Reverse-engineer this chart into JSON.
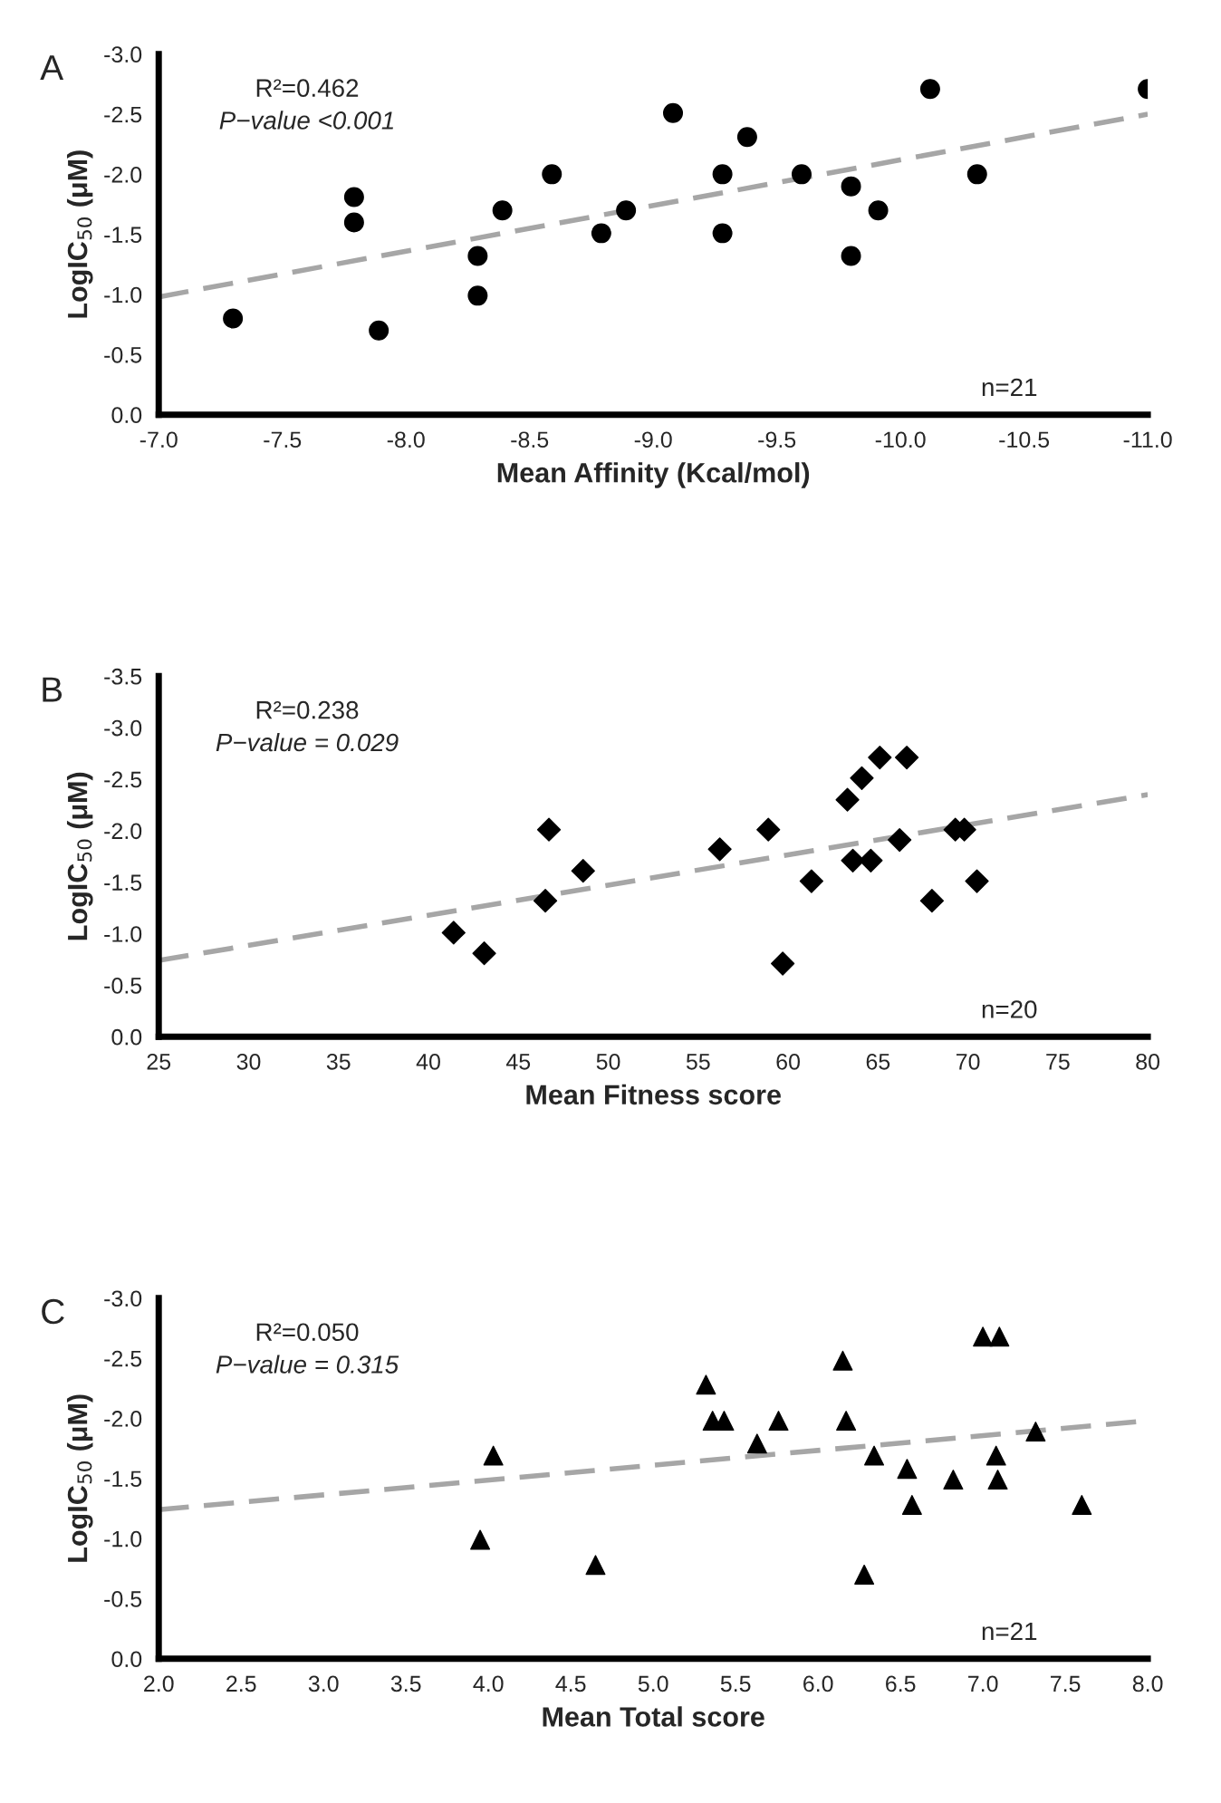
{
  "chart_data": [
    {
      "type": "scatter",
      "xlabel": "Mean Affinity (Kcal/mol)",
      "ylabel": "LogIC$_{50}$ (μM)",
      "marker": "circle",
      "grid": false,
      "legend": false,
      "annotations": [
        "A",
        "R²=0.462",
        "P−value <0.001",
        "n=21"
      ],
      "xlim": [
        -7.0,
        -11.0
      ],
      "xticks": [
        {
          "value": -7,
          "label": "-7.0"
        },
        -7.5,
        {
          "value": -8,
          "label": "-8.0"
        },
        -8.5,
        {
          "value": -9,
          "label": "-9.0"
        },
        -9.5,
        {
          "value": -10,
          "label": "-10.0"
        },
        -10.5,
        {
          "value": -11,
          "label": "-11.0"
        }
      ],
      "ylim": [
        0.0,
        -3.0
      ],
      "yticks": [
        {
          "value": 0,
          "label": "0.0"
        },
        -0.5,
        {
          "value": -1,
          "label": "-1.0"
        },
        -1.5,
        {
          "value": -2,
          "label": "-2.0"
        },
        -2.5,
        {
          "value": -3,
          "label": "-3.0"
        }
      ],
      "series": [
        {
          "color": "#000000",
          "x": [
            -7.3,
            -7.89,
            -7.79,
            -7.79,
            -8.29,
            -8.29,
            -8.39,
            -8.59,
            -8.79,
            -8.89,
            -9.08,
            -9.28,
            -9.28,
            -9.38,
            -9.6,
            -9.8,
            -9.8,
            -9.91,
            -10.12,
            -10.31,
            -11.0
          ],
          "values": [
            -0.8,
            -0.7,
            -1.81,
            -1.6,
            -1.32,
            -0.99,
            -1.7,
            -2.0,
            -1.51,
            -1.7,
            -2.51,
            -2.0,
            -1.51,
            -2.31,
            -2.0,
            -1.9,
            -1.32,
            -1.7,
            -2.71,
            -2.0,
            -2.71
          ]
        },
        {
          "type": "line",
          "color": "#a6a6a6",
          "line_style": "dashed",
          "marker": "none",
          "x": [
            -7.0,
            -11.0
          ],
          "values": [
            -0.98,
            -2.5
          ]
        }
      ]
    },
    {
      "type": "scatter",
      "xlabel": "Mean Fitness score",
      "ylabel": "LogIC$_{50}$ (μM)",
      "marker": "diamond",
      "grid": false,
      "legend": false,
      "annotations": [
        "B",
        "R²=0.238",
        "P−value = 0.029",
        "n=20"
      ],
      "xlim": [
        25,
        80
      ],
      "xticks": [
        25,
        30,
        35,
        40,
        45,
        50,
        55,
        60,
        65,
        70,
        75,
        80
      ],
      "ylim": [
        0.0,
        -3.5
      ],
      "yticks": [
        {
          "value": 0,
          "label": "0.0"
        },
        -0.5,
        {
          "value": -1,
          "label": "-1.0"
        },
        -1.5,
        {
          "value": -2,
          "label": "-2.0"
        },
        -2.5,
        {
          "value": -3,
          "label": "-3.0"
        },
        -3.5
      ],
      "series": [
        {
          "color": "#000000",
          "x": [
            41.4,
            43.1,
            46.7,
            46.5,
            48.6,
            56.2,
            58.9,
            59.7,
            61.3,
            63.3,
            64.1,
            63.6,
            64.6,
            65.1,
            66.6,
            66.2,
            69.3,
            69.8,
            68.0,
            70.5
          ],
          "values": [
            -1.01,
            -0.81,
            -2.01,
            -1.32,
            -1.61,
            -1.82,
            -2.01,
            -0.71,
            -1.51,
            -2.3,
            -2.51,
            -1.71,
            -1.71,
            -2.71,
            -2.71,
            -1.91,
            -2.01,
            -2.01,
            -1.32,
            -1.51
          ]
        },
        {
          "type": "line",
          "color": "#a6a6a6",
          "line_style": "dashed",
          "marker": "none",
          "x": [
            25,
            80
          ],
          "values": [
            -0.74,
            -2.35
          ]
        }
      ]
    },
    {
      "type": "scatter",
      "xlabel": "Mean Total score",
      "ylabel": "LogIC$_{50}$ (μM)",
      "marker": "triangle",
      "grid": false,
      "legend": false,
      "annotations": [
        "C",
        "R²=0.050",
        "P−value = 0.315",
        "n=21"
      ],
      "xlim": [
        2.0,
        8.0
      ],
      "xticks": [
        {
          "value": 2,
          "label": "2.0"
        },
        2.5,
        {
          "value": 3,
          "label": "3.0"
        },
        3.5,
        {
          "value": 4,
          "label": "4.0"
        },
        4.5,
        {
          "value": 5,
          "label": "5.0"
        },
        5.5,
        {
          "value": 6,
          "label": "6.0"
        },
        6.5,
        {
          "value": 7,
          "label": "7.0"
        },
        7.5,
        {
          "value": 8,
          "label": "8.0"
        }
      ],
      "ylim": [
        0.0,
        -3.0
      ],
      "yticks": [
        {
          "value": 0,
          "label": "0.0"
        },
        -0.5,
        {
          "value": -1,
          "label": "-1.0"
        },
        -1.5,
        {
          "value": -2,
          "label": "-2.0"
        },
        -2.5,
        {
          "value": -3,
          "label": "-3.0"
        }
      ],
      "series": [
        {
          "color": "#000000",
          "x": [
            3.95,
            4.03,
            4.65,
            5.32,
            5.36,
            5.43,
            5.63,
            5.76,
            6.15,
            6.17,
            6.28,
            6.34,
            6.54,
            6.57,
            6.82,
            7.0,
            7.1,
            7.08,
            7.09,
            7.32,
            7.6
          ],
          "values": [
            -0.99,
            -1.69,
            -0.78,
            -2.28,
            -1.98,
            -1.98,
            -1.79,
            -1.98,
            -2.48,
            -1.98,
            -0.7,
            -1.69,
            -1.58,
            -1.28,
            -1.49,
            -2.68,
            -2.68,
            -1.69,
            -1.49,
            -1.89,
            -1.28
          ]
        },
        {
          "type": "line",
          "color": "#a6a6a6",
          "line_style": "dashed",
          "marker": "none",
          "x": [
            2.0,
            8.0
          ],
          "values": [
            -1.24,
            -1.98
          ]
        }
      ]
    }
  ]
}
